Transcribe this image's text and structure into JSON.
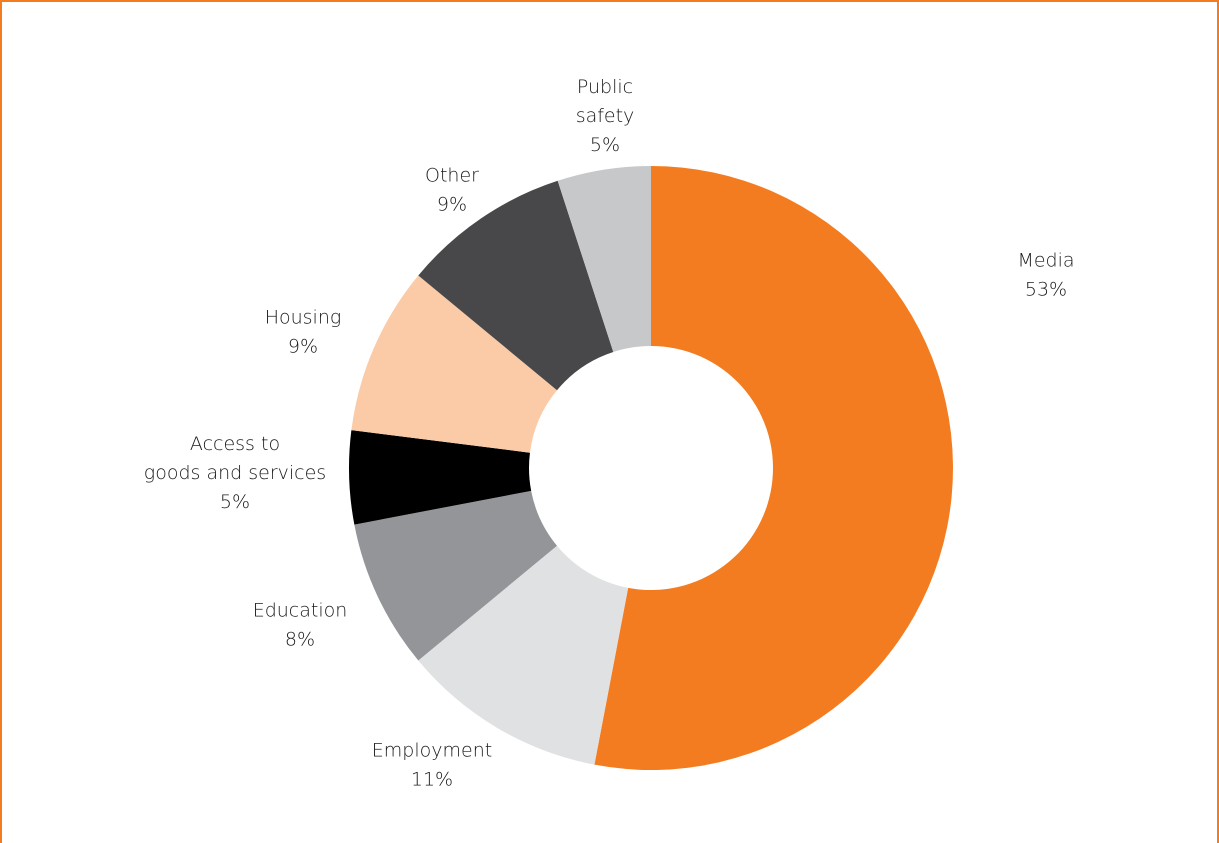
{
  "chart_data": {
    "type": "pie",
    "subtype": "donut",
    "title": "",
    "legend": "none",
    "slices": [
      {
        "label": [
          "Media"
        ],
        "value": 53,
        "value_label": "53%",
        "color": "#f47c20"
      },
      {
        "label": [
          "Employment"
        ],
        "value": 11,
        "value_label": "11%",
        "color": "#e0e1e2"
      },
      {
        "label": [
          "Education"
        ],
        "value": 8,
        "value_label": "8%",
        "color": "#949598"
      },
      {
        "label": [
          "Access to",
          "goods and services"
        ],
        "value": 5,
        "value_label": "5%",
        "color": "#000000"
      },
      {
        "label": [
          "Housing"
        ],
        "value": 9,
        "value_label": "9%",
        "color": "#fbcba7"
      },
      {
        "label": [
          "Other"
        ],
        "value": 9,
        "value_label": "9%",
        "color": "#48484a"
      },
      {
        "label": [
          "Public",
          "safety"
        ],
        "value": 5,
        "value_label": "5%",
        "color": "#c7c8ca"
      }
    ]
  },
  "colors": {
    "frame": "#f47c20",
    "label_text": "#1a1a1a"
  }
}
